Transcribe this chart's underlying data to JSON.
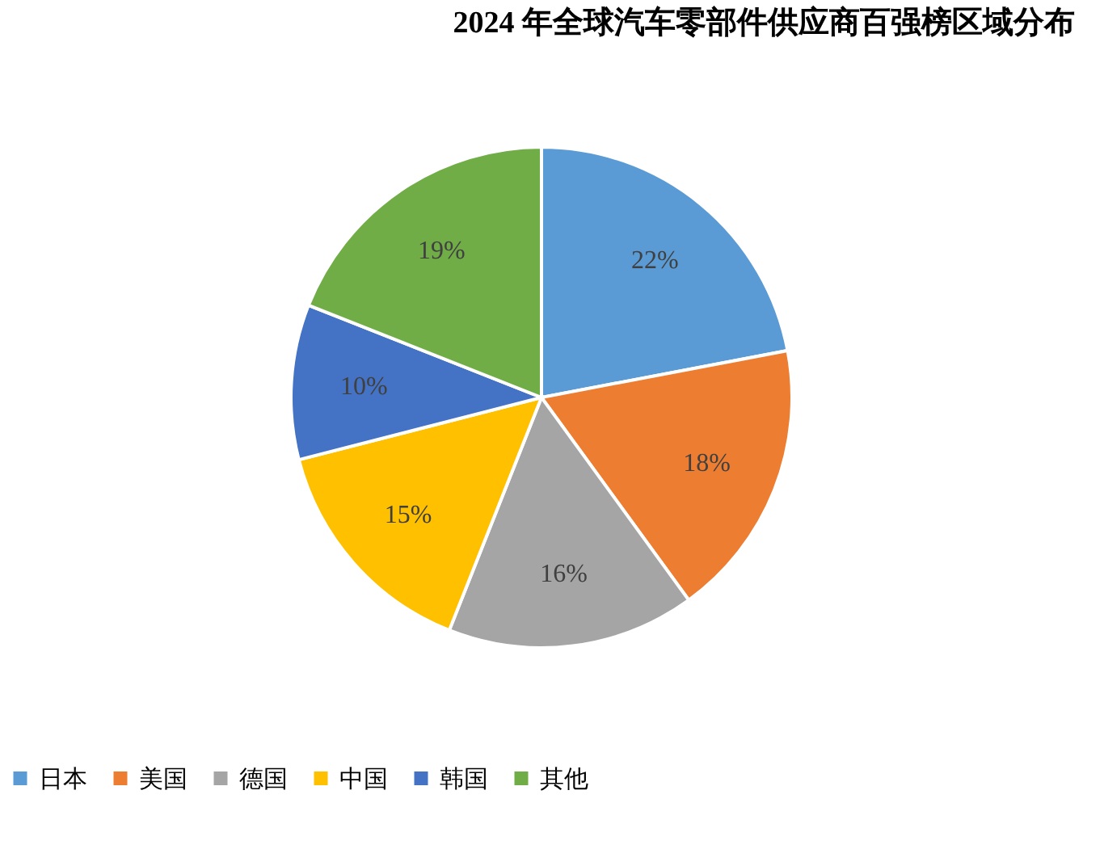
{
  "chart_data": {
    "type": "pie",
    "title": "2024 年全球汽车零部件供应商百强榜区域分布",
    "categories": [
      "日本",
      "美国",
      "德国",
      "中国",
      "韩国",
      "其他"
    ],
    "values": [
      22,
      18,
      16,
      15,
      10,
      19
    ],
    "colors": [
      "#5b9bd5",
      "#ed7d31",
      "#a5a5a5",
      "#ffc000",
      "#4472c4",
      "#70ad47"
    ],
    "value_labels": [
      "22%",
      "18%",
      "16%",
      "15%",
      "10%",
      "19%"
    ],
    "legend": "bottom"
  }
}
